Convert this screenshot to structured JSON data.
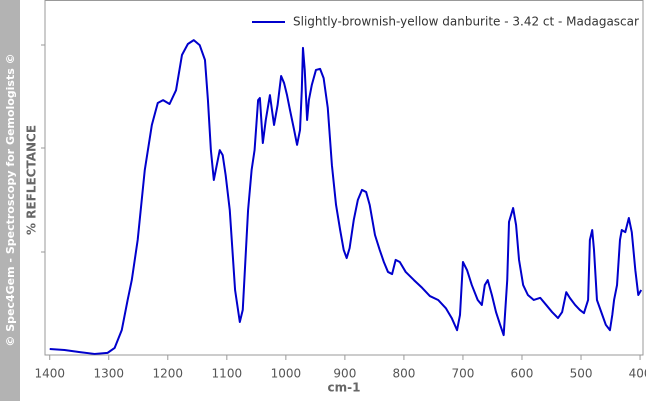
{
  "chart_data": {
    "type": "line",
    "watermark": "© Spec4Gem - Spectroscopy for Gemologists ©",
    "ylabel": "% REFLECTANCE",
    "xlabel": "cm-1",
    "xlim": [
      1408,
      395
    ],
    "ylim": [
      0,
      100
    ],
    "xticks": [
      1400,
      1300,
      1200,
      1100,
      1000,
      900,
      800,
      700,
      600,
      500,
      400
    ],
    "legend": "upper right",
    "x": [
      1400,
      1375,
      1349,
      1324,
      1302,
      1290,
      1278,
      1268,
      1261,
      1251,
      1239,
      1227,
      1217,
      1208,
      1197,
      1186,
      1176,
      1166,
      1156,
      1146,
      1137,
      1132,
      1127,
      1122,
      1117,
      1112,
      1107,
      1102,
      1095,
      1086,
      1078,
      1073,
      1064,
      1058,
      1053,
      1047,
      1044,
      1039,
      1034,
      1027,
      1020,
      1014,
      1008,
      1003,
      998,
      993,
      986,
      981,
      976,
      973,
      971,
      968,
      964,
      961,
      956,
      949,
      942,
      936,
      929,
      922,
      915,
      908,
      902,
      897,
      892,
      885,
      878,
      871,
      864,
      858,
      849,
      841,
      834,
      827,
      820,
      814,
      807,
      797,
      783,
      769,
      756,
      742,
      729,
      719,
      710,
      705,
      700,
      693,
      685,
      675,
      668,
      663,
      658,
      651,
      644,
      637,
      631,
      625,
      622,
      615,
      610,
      605,
      598,
      590,
      580,
      569,
      559,
      549,
      539,
      532,
      525,
      519,
      510,
      502,
      495,
      488,
      485,
      481,
      478,
      473,
      464,
      458,
      451,
      447,
      444,
      439,
      434,
      431,
      425,
      419,
      414,
      408,
      403,
      398
    ],
    "series": [
      {
        "name": "Slightly-brownish-yellow danburite - 3.42 ct - Madagascar",
        "color": "#0000cc",
        "values": [
          1.7,
          1.4,
          0.8,
          0.3,
          0.6,
          2.0,
          7.0,
          15.5,
          21.1,
          32.4,
          52.1,
          64.8,
          71.0,
          71.8,
          70.7,
          74.6,
          84.5,
          87.6,
          88.7,
          87.3,
          83.1,
          71.8,
          57.7,
          49.3,
          53.5,
          57.7,
          56.3,
          50.7,
          40.8,
          18.3,
          9.3,
          12.7,
          40.8,
          52.1,
          57.7,
          71.8,
          72.4,
          59.7,
          66.2,
          73.2,
          64.8,
          70.4,
          78.6,
          76.6,
          73.2,
          69.0,
          63.4,
          59.2,
          63.4,
          74.6,
          86.5,
          80.3,
          66.2,
          71.8,
          76.1,
          80.3,
          80.6,
          78.0,
          69.6,
          53.5,
          42.3,
          35.2,
          29.6,
          27.3,
          30.1,
          38.0,
          43.7,
          46.5,
          45.9,
          42.3,
          33.8,
          29.6,
          26.2,
          23.4,
          22.8,
          26.8,
          26.2,
          23.4,
          21.1,
          18.9,
          16.6,
          15.5,
          13.2,
          10.4,
          7.0,
          11.3,
          26.2,
          23.9,
          19.7,
          15.5,
          14.1,
          19.7,
          21.1,
          16.9,
          12.1,
          8.5,
          5.6,
          21.1,
          37.5,
          41.4,
          36.6,
          26.8,
          19.7,
          16.9,
          15.5,
          16.1,
          14.1,
          12.1,
          10.4,
          12.1,
          17.7,
          16.1,
          14.1,
          12.7,
          11.8,
          15.5,
          32.4,
          35.2,
          29.6,
          15.5,
          11.3,
          8.5,
          7.0,
          11.3,
          15.5,
          19.7,
          32.4,
          35.2,
          34.6,
          38.6,
          34.6,
          23.9,
          16.9,
          18.3
        ]
      }
    ]
  }
}
